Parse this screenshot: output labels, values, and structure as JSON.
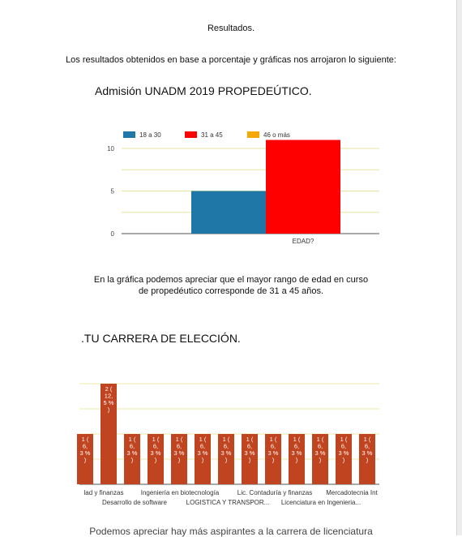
{
  "page": {
    "heading": "Resultados.",
    "intro": "Los resultados obtenidos en base a porcentaje y gráficas nos arrojaron lo siguiente:",
    "explanation_line1": "En la gráfica podemos apreciar que el mayor rango de edad en curso",
    "explanation_line2": "de propedéutico corresponde de 31 a 45 años.",
    "bottom_text": "Podemos apreciar hay más aspirantes a la carrera de licenciatura"
  },
  "chart_data": [
    {
      "type": "bar",
      "title": "Admisión UNADM 2019 PROPEDEÚTICO.",
      "categories": [
        "EDAD?"
      ],
      "series": [
        {
          "name": "18 a 30",
          "color": "#1f77a8",
          "values": [
            5
          ]
        },
        {
          "name": "31 a 45",
          "color": "#ff0000",
          "values": [
            11
          ]
        },
        {
          "name": "46 o más",
          "color": "#f5a800",
          "values": [
            0
          ]
        }
      ],
      "yticks": [
        "0",
        "5",
        "10"
      ],
      "ylim": [
        0,
        12
      ],
      "grid": true,
      "legend": "top-left"
    },
    {
      "type": "bar",
      "title": ".TU CARRERA DE ELECCIÓN.",
      "color": "#c0441f",
      "values": [
        1,
        2,
        1,
        1,
        1,
        1,
        1,
        1,
        1,
        1,
        1,
        1,
        1
      ],
      "bar_labels": [
        "1 (6,3 %)",
        "2 (12,5 %)",
        "1 (6,3 %)",
        "1 (6,3 %)",
        "1 (6,3 %)",
        "1 (6,3 %)",
        "1 (6,3 %)",
        "1 (6,3 %)",
        "1 (6,3 %)",
        "1 (6,3 %)",
        "1 (6,3 %)",
        "1 (6,3 %)",
        "1 (6,3 %)"
      ],
      "axis_labels_row1": [
        "lad y finanzas",
        "Ingeniería en biotecnología",
        "Lic. Contaduría y finanzas",
        "Mercadotecnia Int"
      ],
      "axis_labels_row2": [
        "Desarrollo de software",
        "LOGISTICA Y TRANSPOR...",
        "Licenciatura en Ingenieria..."
      ],
      "ylim": [
        0,
        2.4
      ],
      "grid": true
    }
  ]
}
